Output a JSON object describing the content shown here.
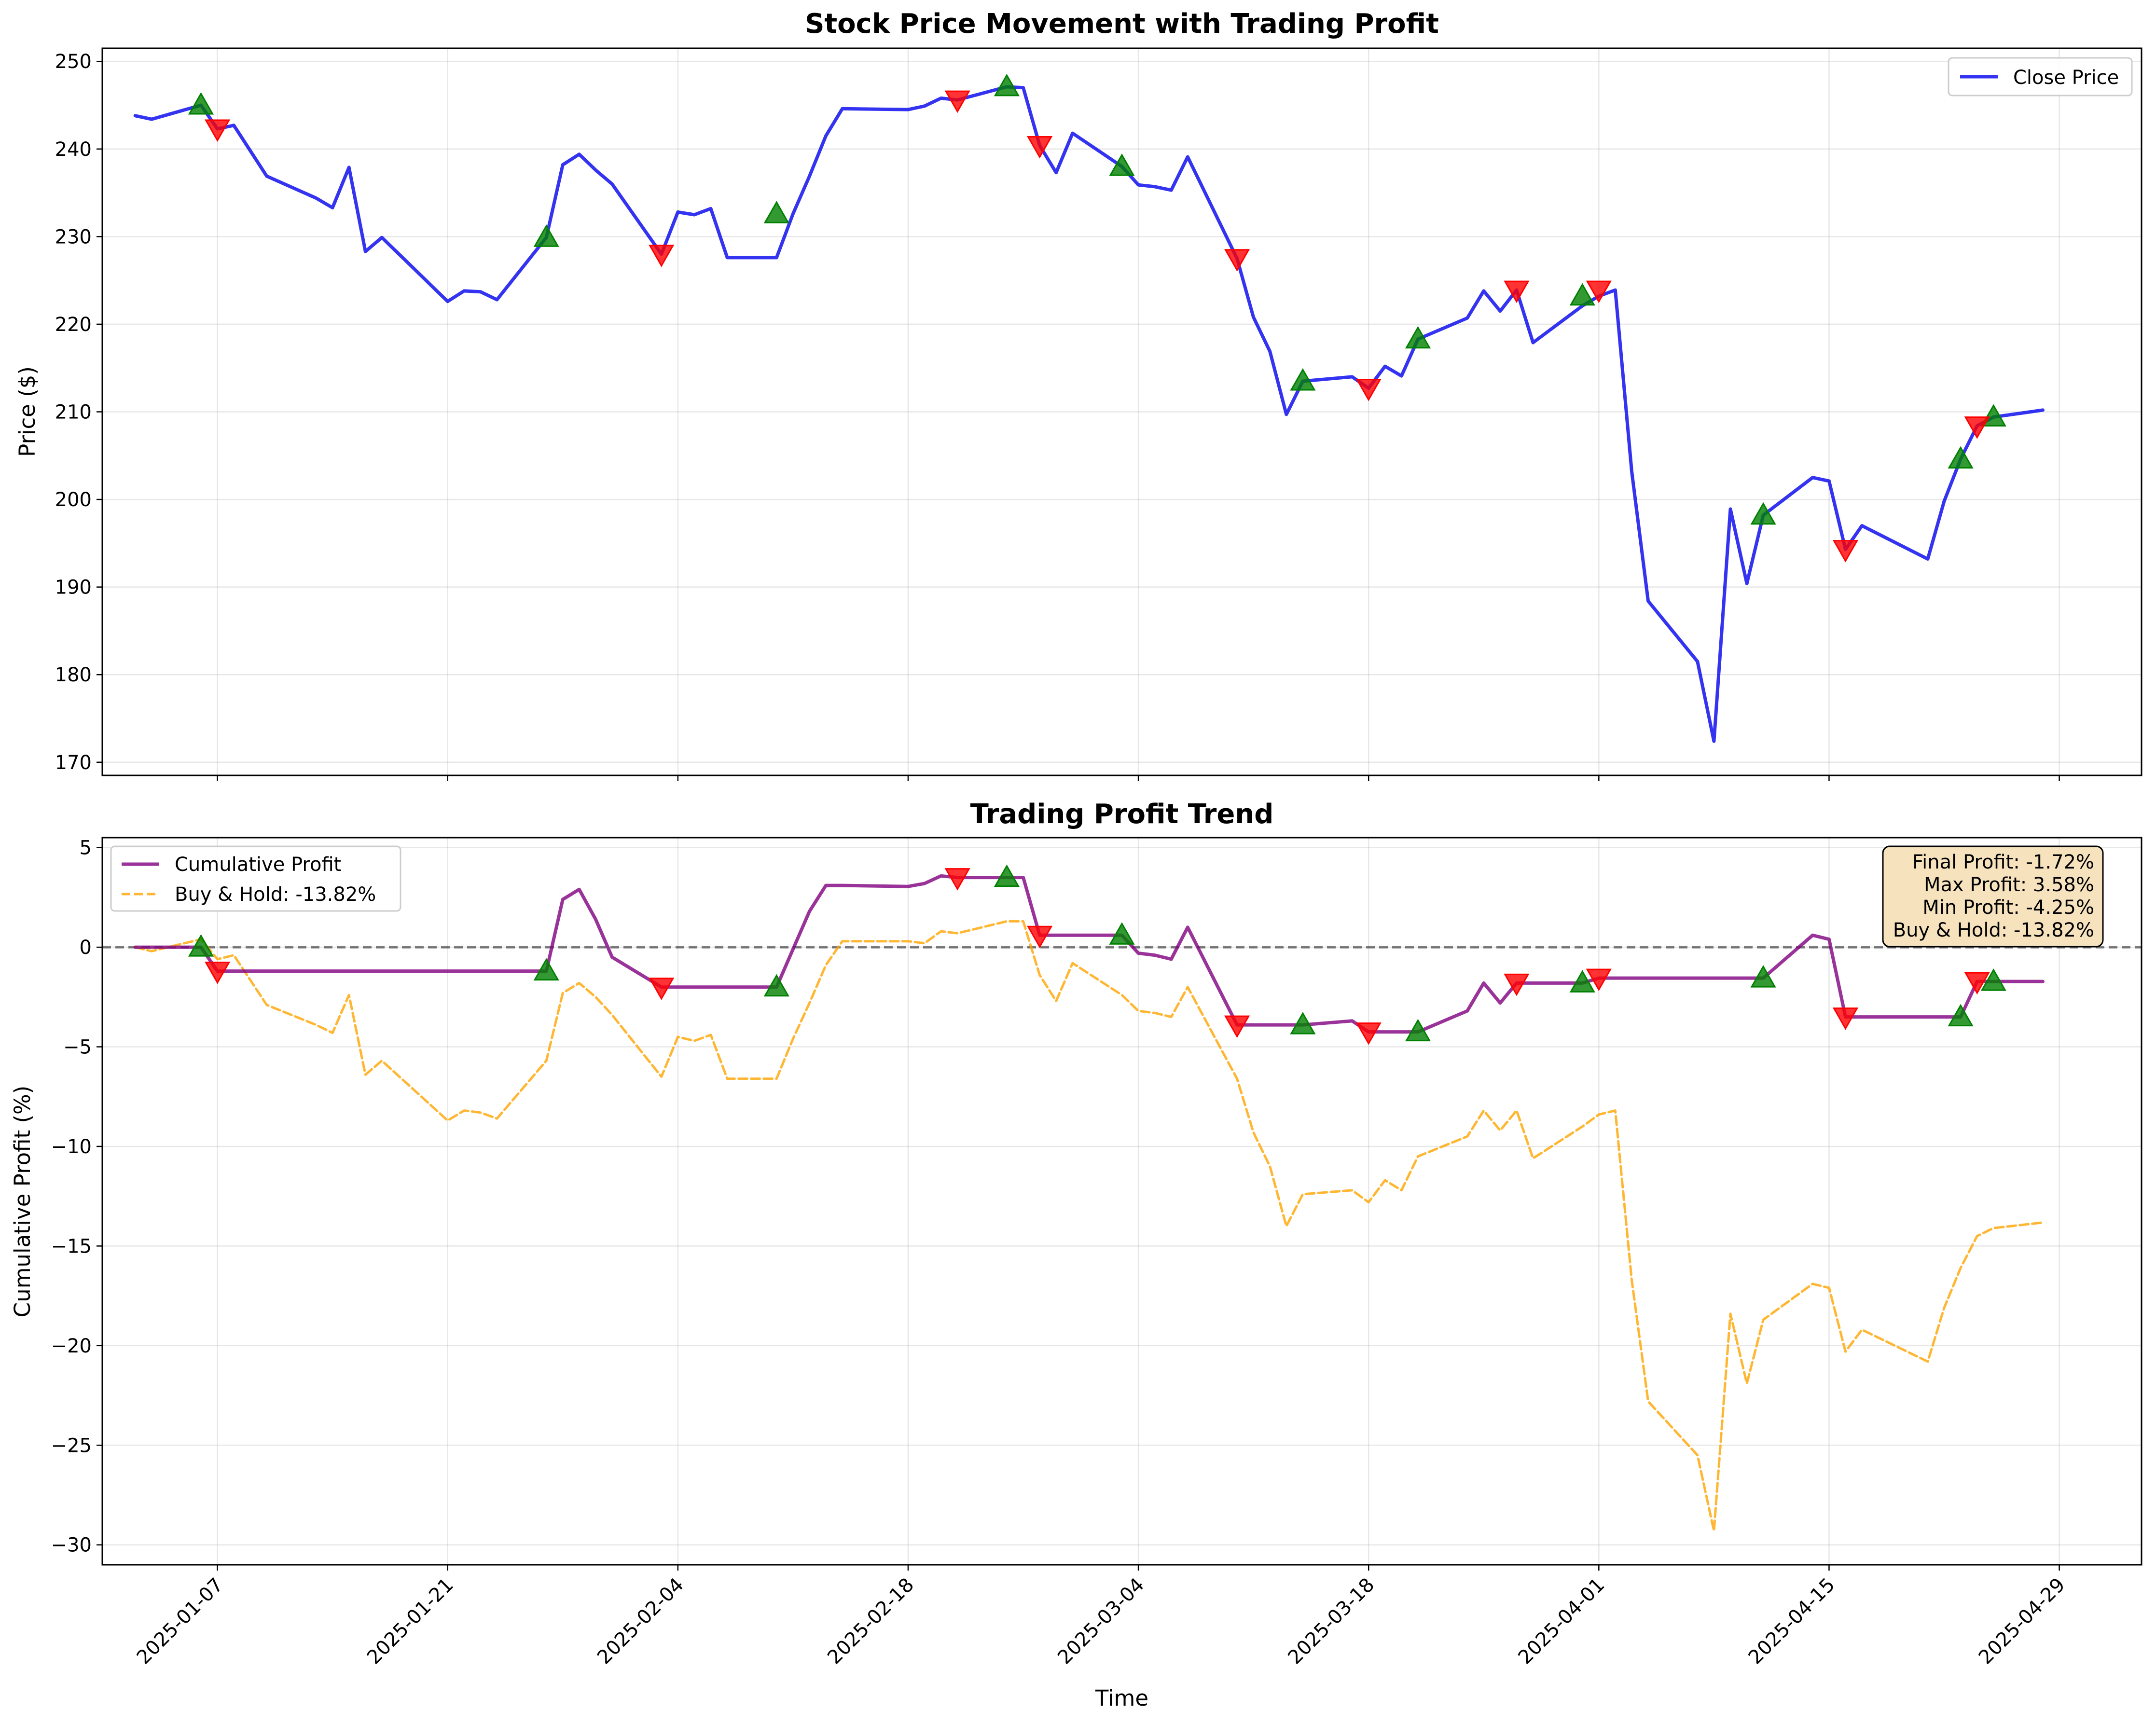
{
  "chart_data": [
    {
      "type": "line",
      "title": "Stock Price Movement with Trading Profit",
      "xlabel": "",
      "ylabel": "Price ($)",
      "ylim": [
        168.5,
        251.5
      ],
      "yticks": [
        170,
        180,
        190,
        200,
        210,
        220,
        230,
        240,
        250
      ],
      "grid": true,
      "legend_position": "top-right",
      "series": [
        {
          "name": "Close Price",
          "color": "#0000ee",
          "x": [
            "2025-01-02",
            "2025-01-03",
            "2025-01-06",
            "2025-01-07",
            "2025-01-08",
            "2025-01-10",
            "2025-01-13",
            "2025-01-14",
            "2025-01-15",
            "2025-01-16",
            "2025-01-17",
            "2025-01-21",
            "2025-01-22",
            "2025-01-23",
            "2025-01-24",
            "2025-01-27",
            "2025-01-28",
            "2025-01-29",
            "2025-01-30",
            "2025-01-31",
            "2025-02-03",
            "2025-02-04",
            "2025-02-05",
            "2025-02-06",
            "2025-02-07",
            "2025-02-10",
            "2025-02-11",
            "2025-02-12",
            "2025-02-13",
            "2025-02-14",
            "2025-02-18",
            "2025-02-19",
            "2025-02-20",
            "2025-02-21",
            "2025-02-24",
            "2025-02-25",
            "2025-02-26",
            "2025-02-27",
            "2025-02-28",
            "2025-03-03",
            "2025-03-04",
            "2025-03-05",
            "2025-03-06",
            "2025-03-07",
            "2025-03-10",
            "2025-03-11",
            "2025-03-12",
            "2025-03-13",
            "2025-03-14",
            "2025-03-17",
            "2025-03-18",
            "2025-03-19",
            "2025-03-20",
            "2025-03-21",
            "2025-03-24",
            "2025-03-25",
            "2025-03-26",
            "2025-03-27",
            "2025-03-28",
            "2025-03-31",
            "2025-04-01",
            "2025-04-02",
            "2025-04-03",
            "2025-04-04",
            "2025-04-07",
            "2025-04-08",
            "2025-04-09",
            "2025-04-10",
            "2025-04-11",
            "2025-04-14",
            "2025-04-15",
            "2025-04-16",
            "2025-04-17",
            "2025-04-21",
            "2025-04-22",
            "2025-04-23",
            "2025-04-24",
            "2025-04-25",
            "2025-04-28"
          ],
          "values": [
            243.8,
            243.4,
            245.0,
            242.3,
            242.7,
            236.9,
            234.4,
            233.3,
            237.9,
            228.3,
            229.9,
            222.6,
            223.8,
            223.7,
            222.8,
            229.9,
            238.2,
            239.4,
            237.6,
            236.0,
            228.0,
            232.8,
            232.5,
            233.2,
            227.6,
            227.6,
            232.6,
            236.9,
            241.5,
            244.6,
            244.5,
            244.9,
            245.8,
            245.6,
            247.1,
            247.0,
            240.4,
            237.3,
            241.8,
            238.0,
            235.9,
            235.7,
            235.3,
            239.1,
            227.5,
            220.8,
            216.9,
            209.7,
            213.5,
            214.0,
            212.7,
            215.2,
            214.1,
            218.3,
            220.7,
            223.8,
            221.5,
            223.9,
            217.9,
            222.1,
            223.2,
            223.9,
            203.2,
            188.4,
            181.5,
            172.4,
            198.9,
            190.4,
            198.2,
            202.5,
            202.1,
            194.3,
            197.0,
            193.2,
            199.8,
            204.6,
            208.4,
            209.4,
            210.2
          ]
        }
      ],
      "buy_signals": {
        "x": [
          "2025-01-06",
          "2025-01-27",
          "2025-02-10",
          "2025-02-24",
          "2025-03-03",
          "2025-03-14",
          "2025-03-21",
          "2025-03-31",
          "2025-04-11",
          "2025-04-23",
          "2025-04-25"
        ],
        "values": [
          245.0,
          229.9,
          232.6,
          247.1,
          238.0,
          213.5,
          218.3,
          223.2,
          198.2,
          204.6,
          209.4
        ],
        "color": "#008000"
      },
      "sell_signals": {
        "x": [
          "2025-01-07",
          "2025-02-03",
          "2025-02-21",
          "2025-02-26",
          "2025-03-10",
          "2025-03-18",
          "2025-03-27",
          "2025-04-01",
          "2025-04-16",
          "2025-04-24"
        ],
        "values": [
          242.3,
          228.0,
          245.6,
          240.4,
          227.5,
          212.7,
          223.9,
          223.9,
          194.3,
          208.4
        ],
        "color": "#ff0000"
      }
    },
    {
      "type": "line",
      "title": "Trading Profit Trend",
      "xlabel": "Time",
      "ylabel": "Cumulative Profit (%)",
      "ylim": [
        -31.0,
        5.5
      ],
      "yticks": [
        -30,
        -25,
        -20,
        -15,
        -10,
        -5,
        0,
        5
      ],
      "xticks": [
        "2025-01-07",
        "2025-01-21",
        "2025-02-04",
        "2025-02-18",
        "2025-03-04",
        "2025-03-18",
        "2025-04-01",
        "2025-04-15",
        "2025-04-29"
      ],
      "xlim": [
        "2024-12-31",
        "2025-05-04"
      ],
      "grid": true,
      "legend_position": "top-left",
      "zero_line": true,
      "series": [
        {
          "name": "Cumulative Profit",
          "color": "#800080",
          "style": "solid",
          "x": [
            "2025-01-02",
            "2025-01-03",
            "2025-01-06",
            "2025-01-07",
            "2025-01-27",
            "2025-01-28",
            "2025-01-29",
            "2025-01-30",
            "2025-01-31",
            "2025-02-03",
            "2025-02-10",
            "2025-02-11",
            "2025-02-12",
            "2025-02-13",
            "2025-02-14",
            "2025-02-18",
            "2025-02-19",
            "2025-02-20",
            "2025-02-21",
            "2025-02-24",
            "2025-02-25",
            "2025-02-26",
            "2025-03-03",
            "2025-03-04",
            "2025-03-05",
            "2025-03-06",
            "2025-03-07",
            "2025-03-10",
            "2025-03-14",
            "2025-03-17",
            "2025-03-18",
            "2025-03-21",
            "2025-03-24",
            "2025-03-25",
            "2025-03-26",
            "2025-03-27",
            "2025-03-31",
            "2025-04-01",
            "2025-04-11",
            "2025-04-14",
            "2025-04-15",
            "2025-04-16",
            "2025-04-23",
            "2025-04-24",
            "2025-04-25",
            "2025-04-28"
          ],
          "values": [
            0,
            0,
            0,
            -1.2,
            -1.2,
            2.4,
            2.9,
            1.4,
            -0.5,
            -2.0,
            -2.0,
            -0.1,
            1.8,
            3.1,
            3.1,
            3.05,
            3.2,
            3.58,
            3.5,
            3.5,
            3.5,
            0.6,
            0.6,
            -0.3,
            -0.4,
            -0.6,
            1.0,
            -3.9,
            -3.9,
            -3.7,
            -4.25,
            -4.25,
            -3.2,
            -1.8,
            -2.8,
            -1.8,
            -1.8,
            -1.55,
            -1.55,
            0.6,
            0.4,
            -3.5,
            -3.5,
            -1.72,
            -1.72,
            -1.72
          ]
        },
        {
          "name": "Buy & Hold: -13.82%",
          "color": "#ffa500",
          "style": "dashed",
          "x": [
            "2025-01-02",
            "2025-01-03",
            "2025-01-06",
            "2025-01-07",
            "2025-01-08",
            "2025-01-10",
            "2025-01-13",
            "2025-01-14",
            "2025-01-15",
            "2025-01-16",
            "2025-01-17",
            "2025-01-21",
            "2025-01-22",
            "2025-01-23",
            "2025-01-24",
            "2025-01-27",
            "2025-01-28",
            "2025-01-29",
            "2025-01-30",
            "2025-01-31",
            "2025-02-03",
            "2025-02-04",
            "2025-02-05",
            "2025-02-06",
            "2025-02-07",
            "2025-02-10",
            "2025-02-11",
            "2025-02-12",
            "2025-02-13",
            "2025-02-14",
            "2025-02-18",
            "2025-02-19",
            "2025-02-20",
            "2025-02-21",
            "2025-02-24",
            "2025-02-25",
            "2025-02-26",
            "2025-02-27",
            "2025-02-28",
            "2025-03-03",
            "2025-03-04",
            "2025-03-05",
            "2025-03-06",
            "2025-03-07",
            "2025-03-10",
            "2025-03-11",
            "2025-03-12",
            "2025-03-13",
            "2025-03-14",
            "2025-03-17",
            "2025-03-18",
            "2025-03-19",
            "2025-03-20",
            "2025-03-21",
            "2025-03-24",
            "2025-03-25",
            "2025-03-26",
            "2025-03-27",
            "2025-03-28",
            "2025-03-31",
            "2025-04-01",
            "2025-04-02",
            "2025-04-03",
            "2025-04-04",
            "2025-04-07",
            "2025-04-08",
            "2025-04-09",
            "2025-04-10",
            "2025-04-11",
            "2025-04-14",
            "2025-04-15",
            "2025-04-16",
            "2025-04-17",
            "2025-04-21",
            "2025-04-22",
            "2025-04-23",
            "2025-04-24",
            "2025-04-25",
            "2025-04-28"
          ],
          "values": [
            0,
            -0.2,
            0.4,
            -0.6,
            -0.4,
            -2.9,
            -3.9,
            -4.3,
            -2.4,
            -6.4,
            -5.7,
            -8.7,
            -8.2,
            -8.3,
            -8.6,
            -5.7,
            -2.3,
            -1.8,
            -2.5,
            -3.4,
            -6.5,
            -4.5,
            -4.7,
            -4.4,
            -6.6,
            -6.6,
            -4.6,
            -2.8,
            -0.9,
            0.3,
            0.3,
            0.2,
            0.8,
            0.7,
            1.3,
            1.3,
            -1.4,
            -2.7,
            -0.8,
            -2.4,
            -3.2,
            -3.3,
            -3.5,
            -2.0,
            -6.6,
            -9.3,
            -11.0,
            -14.0,
            -12.4,
            -12.2,
            -12.8,
            -11.7,
            -12.2,
            -10.5,
            -9.5,
            -8.2,
            -9.2,
            -8.2,
            -10.6,
            -9.0,
            -8.4,
            -8.2,
            -16.7,
            -22.8,
            -25.5,
            -29.3,
            -18.4,
            -21.9,
            -18.7,
            -16.9,
            -17.1,
            -20.3,
            -19.2,
            -20.8,
            -18.1,
            -16.1,
            -14.5,
            -14.1,
            -13.82
          ]
        }
      ],
      "buy_signals": {
        "x": [
          "2025-01-06",
          "2025-01-27",
          "2025-02-10",
          "2025-02-24",
          "2025-03-03",
          "2025-03-14",
          "2025-03-21",
          "2025-03-31",
          "2025-04-11",
          "2025-04-23",
          "2025-04-25"
        ],
        "values": [
          0,
          -1.2,
          -2.0,
          3.5,
          0.6,
          -3.9,
          -4.25,
          -1.8,
          -1.55,
          -3.5,
          -1.72
        ],
        "color": "#008000"
      },
      "sell_signals": {
        "x": [
          "2025-01-07",
          "2025-02-03",
          "2025-02-21",
          "2025-02-26",
          "2025-03-10",
          "2025-03-18",
          "2025-03-27",
          "2025-04-01",
          "2025-04-16",
          "2025-04-24"
        ],
        "values": [
          -1.2,
          -2.0,
          3.5,
          0.6,
          -3.9,
          -4.25,
          -1.8,
          -1.55,
          -3.5,
          -1.72
        ],
        "color": "#ff0000"
      },
      "annotation": {
        "lines": [
          "Final Profit: -1.72%",
          "Max Profit: 3.58%",
          "Min Profit: -4.25%",
          "Buy & Hold: -13.82%"
        ],
        "position": "top-right",
        "background": "#f5deb3"
      }
    }
  ]
}
